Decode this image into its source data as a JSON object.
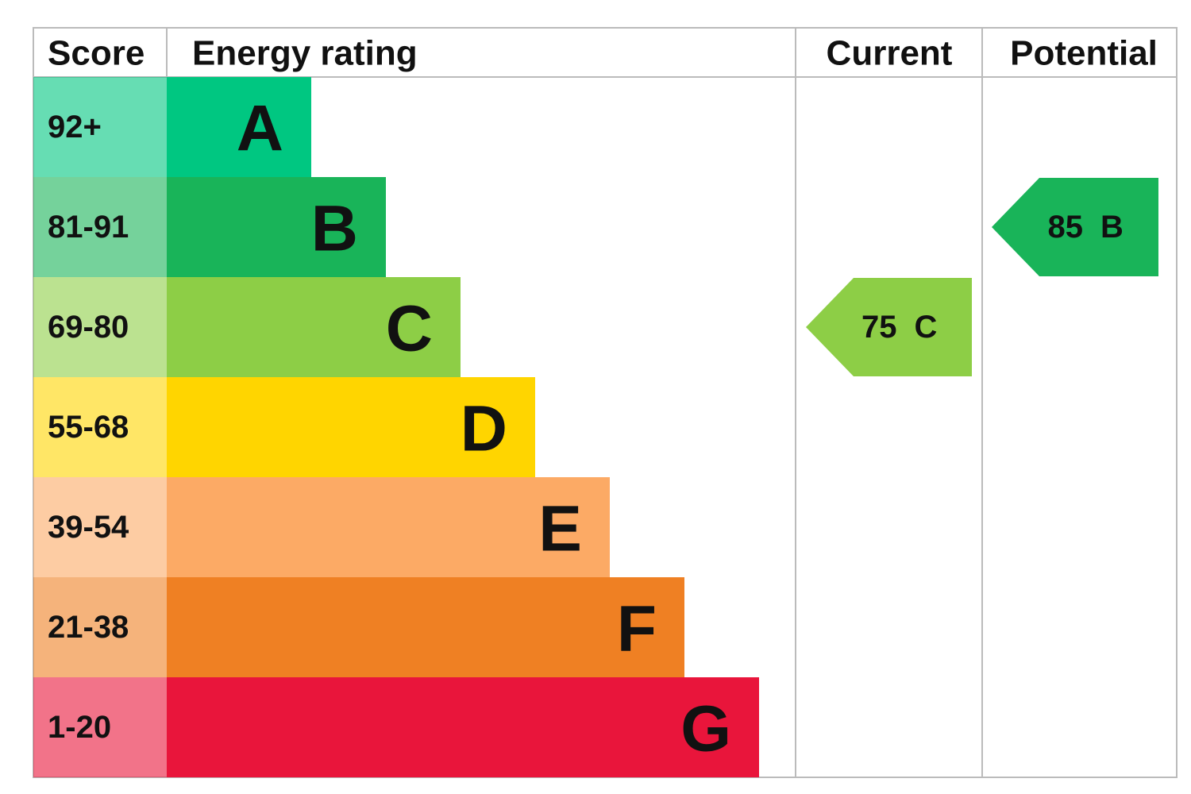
{
  "header": {
    "score": "Score",
    "rating": "Energy rating",
    "current": "Current",
    "potential": "Potential"
  },
  "bands": [
    {
      "score": "92+",
      "letter": "A",
      "color": "#00c781"
    },
    {
      "score": "81-91",
      "letter": "B",
      "color": "#19b459"
    },
    {
      "score": "69-80",
      "letter": "C",
      "color": "#8dce46"
    },
    {
      "score": "55-68",
      "letter": "D",
      "color": "#ffd500"
    },
    {
      "score": "39-54",
      "letter": "E",
      "color": "#fcaa65"
    },
    {
      "score": "21-38",
      "letter": "F",
      "color": "#ef8023"
    },
    {
      "score": "1-20",
      "letter": "G",
      "color": "#e9153b"
    }
  ],
  "current": {
    "value": 75,
    "letter": "C"
  },
  "potential": {
    "value": 85,
    "letter": "B"
  }
}
